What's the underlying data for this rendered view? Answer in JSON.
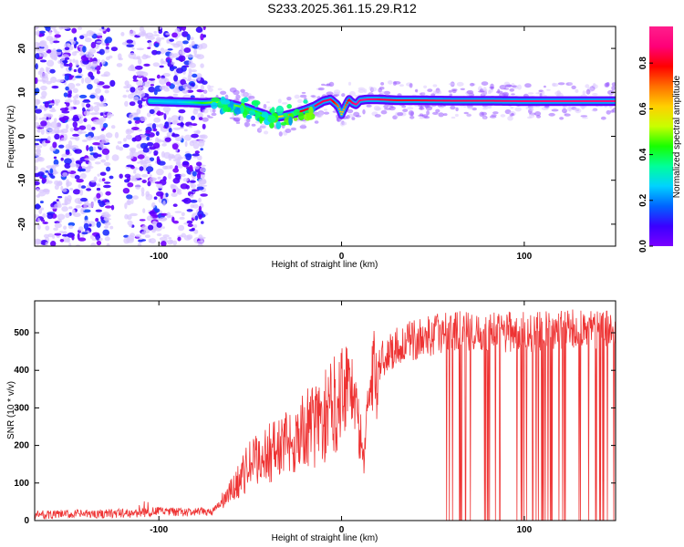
{
  "title": "S233.2025.361.15.29.R12",
  "chart_data": [
    {
      "type": "heatmap",
      "xlabel": "Height of straight line (km)",
      "ylabel": "Frequency (Hz)",
      "xlim": [
        -168,
        150
      ],
      "ylim": [
        -25,
        25
      ],
      "xticks": [
        -100,
        0,
        100
      ],
      "yticks": [
        -20,
        -10,
        0,
        10,
        20
      ],
      "grid": false,
      "colorbar": {
        "label": "Normalized spectral amplitude",
        "ticks": [
          0.0,
          0.2,
          0.4,
          0.6,
          0.8
        ],
        "range": [
          0,
          0.96
        ],
        "colormap": [
          "#7a00ff",
          "#3a00ff",
          "#0064ff",
          "#00d2ff",
          "#00ff9a",
          "#18ff00",
          "#c8ff00",
          "#ffd000",
          "#ff7000",
          "#ff0000",
          "#ff0078",
          "#ff1e8c"
        ]
      },
      "scatter_noise": {
        "x_range": [
          -168,
          -75
        ],
        "y_range": [
          -25,
          25
        ],
        "amplitude_range": [
          0.0,
          0.15
        ]
      },
      "ridge": {
        "x": [
          -105,
          -90,
          -75,
          -68,
          -60,
          -52,
          -44,
          -38,
          -32,
          -26,
          -20,
          -15,
          -10,
          -6,
          -2,
          0,
          2,
          4,
          6,
          8,
          10,
          14,
          20,
          30,
          40,
          60,
          80,
          100,
          120,
          140,
          150
        ],
        "y": [
          8.0,
          7.8,
          7.6,
          7.8,
          7.2,
          6.4,
          5.2,
          4.3,
          4.6,
          5.2,
          6.0,
          6.8,
          8.0,
          8.4,
          7.0,
          5.0,
          6.8,
          8.4,
          7.6,
          7.2,
          8.2,
          8.4,
          8.4,
          8.2,
          8.2,
          8.1,
          8.1,
          8.0,
          8.0,
          8.0,
          8.0
        ],
        "amplitude": [
          0.3,
          0.25,
          0.45,
          0.5,
          0.5,
          0.45,
          0.45,
          0.4,
          0.6,
          0.75,
          0.8,
          0.85,
          0.85,
          0.85,
          0.7,
          0.6,
          0.7,
          0.8,
          0.85,
          0.9,
          0.9,
          0.92,
          0.85,
          0.82,
          0.82,
          0.85,
          0.85,
          0.88,
          0.9,
          0.9,
          0.9
        ]
      }
    },
    {
      "type": "line",
      "xlabel": "Height of straight line (km)",
      "ylabel": "SNR (10 * v/v)",
      "xlim": [
        -168,
        150
      ],
      "ylim": [
        0,
        585
      ],
      "xticks": [
        -100,
        0,
        100
      ],
      "yticks": [
        0,
        100,
        200,
        300,
        400,
        500
      ],
      "grid": false,
      "color": "#ee3333",
      "profile": {
        "x": [
          -168,
          -110,
          -100,
          -90,
          -80,
          -70,
          -60,
          -50,
          -40,
          -30,
          -20,
          -10,
          -5,
          0,
          5,
          10,
          12,
          14,
          20,
          30,
          40,
          50,
          60,
          80,
          100,
          120,
          150
        ],
        "y": [
          15,
          20,
          25,
          22,
          22,
          25,
          80,
          150,
          180,
          205,
          240,
          270,
          300,
          360,
          380,
          230,
          160,
          300,
          420,
          465,
          480,
          495,
          505,
          505,
          500,
          505,
          515
        ]
      },
      "dropouts": {
        "x_ranges": [
          [
            57,
            90
          ],
          [
            95,
            150
          ]
        ],
        "min_value": 0
      }
    }
  ]
}
